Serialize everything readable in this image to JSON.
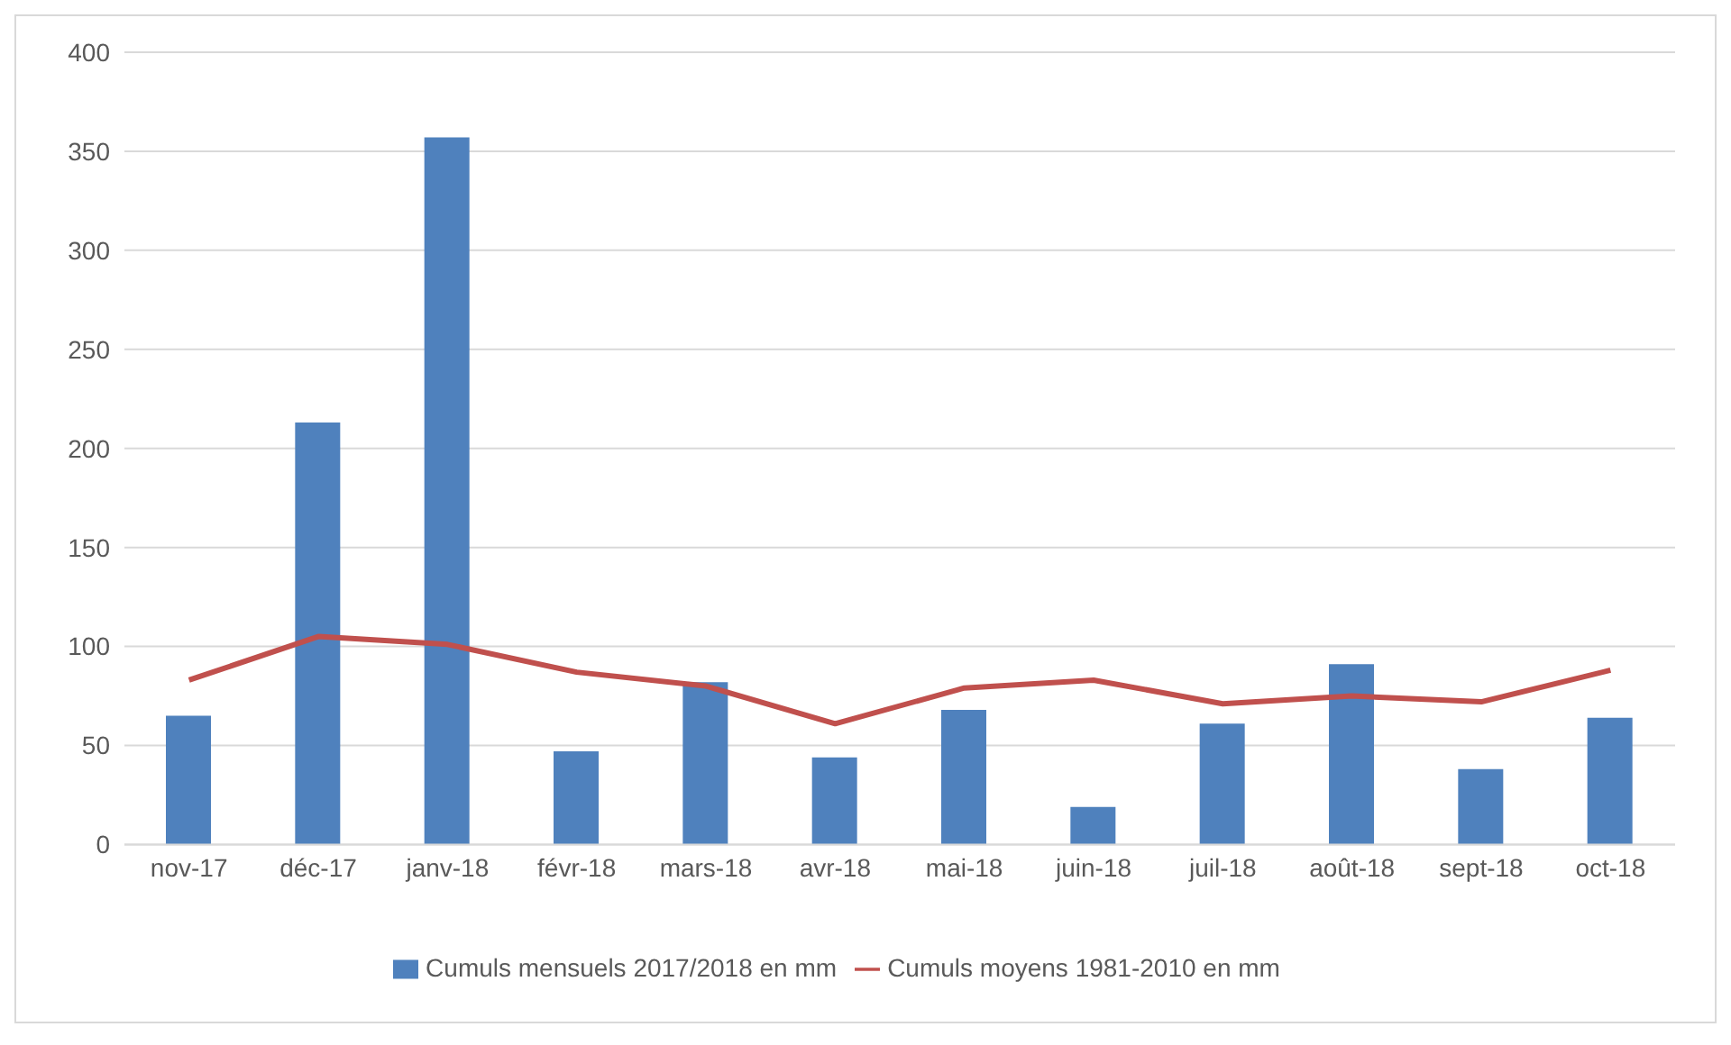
{
  "chart_data": {
    "type": "bar",
    "categories": [
      "nov-17",
      "déc-17",
      "janv-18",
      "févr-18",
      "mars-18",
      "avr-18",
      "mai-18",
      "juin-18",
      "juil-18",
      "août-18",
      "sept-18",
      "oct-18"
    ],
    "series": [
      {
        "name": "Cumuls mensuels 2017/2018 en mm",
        "color": "#4f81bd",
        "values": [
          65,
          213,
          357,
          47,
          82,
          44,
          68,
          19,
          61,
          91,
          38,
          64
        ]
      },
      {
        "name": "Cumuls moyens 1981-2010 en mm",
        "type": "line",
        "color": "#c0504d",
        "values": [
          83,
          105,
          101,
          87,
          80,
          61,
          79,
          83,
          71,
          75,
          72,
          88
        ]
      }
    ],
    "ylim": [
      0,
      400
    ],
    "yticks": [
      0,
      50,
      100,
      150,
      200,
      250,
      300,
      350,
      400
    ],
    "grid": "y",
    "legend": "bottom",
    "marker": "none"
  }
}
